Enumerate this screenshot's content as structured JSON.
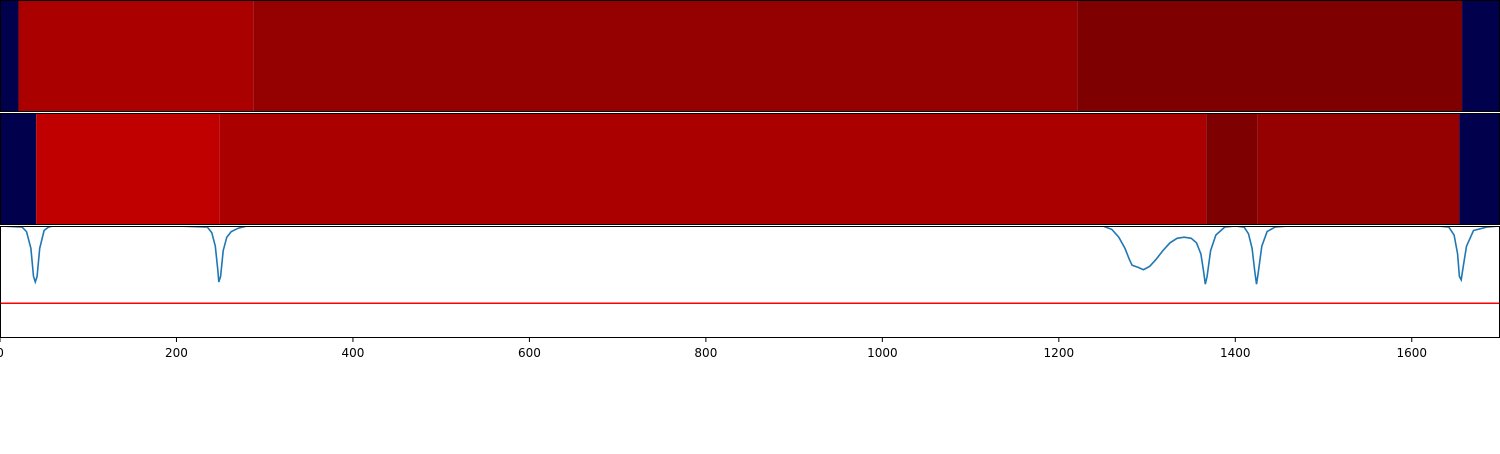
{
  "chart_data": {
    "type": "heatmap",
    "xlim": [
      0,
      1700
    ],
    "xticks": [
      "0",
      "200",
      "400",
      "600",
      "800",
      "1000",
      "1200",
      "1400",
      "1600"
    ],
    "xtick_values": [
      0,
      200,
      400,
      600,
      800,
      1000,
      1200,
      1400,
      1600
    ],
    "rows": [
      {
        "segments": [
          {
            "start": 0,
            "end": 21,
            "color": "#00004c"
          },
          {
            "start": 21,
            "end": 287,
            "color": "#aa0000"
          },
          {
            "start": 287,
            "end": 1221,
            "color": "#950000"
          },
          {
            "start": 1221,
            "end": 1657,
            "color": "#7f0000"
          },
          {
            "start": 1657,
            "end": 1700,
            "color": "#00004c"
          }
        ]
      },
      {
        "segments": [
          {
            "start": 0,
            "end": 41,
            "color": "#00004c"
          },
          {
            "start": 41,
            "end": 249,
            "color": "#c00000"
          },
          {
            "start": 249,
            "end": 1367,
            "color": "#aa0000"
          },
          {
            "start": 1367,
            "end": 1425,
            "color": "#7f0000"
          },
          {
            "start": 1425,
            "end": 1654,
            "color": "#950000"
          },
          {
            "start": 1654,
            "end": 1700,
            "color": "#00004c"
          }
        ]
      }
    ],
    "line_series": {
      "color": "#1f77b4",
      "ylim": [
        0,
        1
      ],
      "points": [
        [
          0,
          1.0
        ],
        [
          25,
          0.99
        ],
        [
          30,
          0.95
        ],
        [
          35,
          0.8
        ],
        [
          38,
          0.55
        ],
        [
          40,
          0.5
        ],
        [
          42,
          0.55
        ],
        [
          45,
          0.8
        ],
        [
          50,
          0.96
        ],
        [
          55,
          0.99
        ],
        [
          60,
          1.0
        ],
        [
          200,
          1.0
        ],
        [
          235,
          0.99
        ],
        [
          240,
          0.94
        ],
        [
          244,
          0.82
        ],
        [
          247,
          0.6
        ],
        [
          248,
          0.5
        ],
        [
          250,
          0.55
        ],
        [
          253,
          0.78
        ],
        [
          257,
          0.9
        ],
        [
          262,
          0.95
        ],
        [
          270,
          0.98
        ],
        [
          280,
          1.0
        ],
        [
          1250,
          1.0
        ],
        [
          1260,
          0.97
        ],
        [
          1268,
          0.9
        ],
        [
          1275,
          0.8
        ],
        [
          1280,
          0.7
        ],
        [
          1283,
          0.65
        ],
        [
          1290,
          0.63
        ],
        [
          1296,
          0.61
        ],
        [
          1303,
          0.64
        ],
        [
          1310,
          0.7
        ],
        [
          1318,
          0.78
        ],
        [
          1326,
          0.85
        ],
        [
          1334,
          0.89
        ],
        [
          1342,
          0.9
        ],
        [
          1350,
          0.89
        ],
        [
          1356,
          0.85
        ],
        [
          1361,
          0.75
        ],
        [
          1364,
          0.6
        ],
        [
          1366,
          0.48
        ],
        [
          1368,
          0.55
        ],
        [
          1372,
          0.78
        ],
        [
          1378,
          0.92
        ],
        [
          1388,
          0.99
        ],
        [
          1400,
          1.0
        ],
        [
          1410,
          0.99
        ],
        [
          1415,
          0.93
        ],
        [
          1419,
          0.8
        ],
        [
          1422,
          0.6
        ],
        [
          1424,
          0.48
        ],
        [
          1426,
          0.58
        ],
        [
          1430,
          0.82
        ],
        [
          1436,
          0.95
        ],
        [
          1445,
          0.99
        ],
        [
          1460,
          1.0
        ],
        [
          1630,
          1.0
        ],
        [
          1642,
          0.99
        ],
        [
          1648,
          0.92
        ],
        [
          1652,
          0.75
        ],
        [
          1654,
          0.55
        ],
        [
          1656,
          0.52
        ],
        [
          1658,
          0.62
        ],
        [
          1662,
          0.82
        ],
        [
          1670,
          0.96
        ],
        [
          1685,
          0.99
        ],
        [
          1700,
          1.0
        ]
      ]
    },
    "threshold": {
      "y": 0.31,
      "color": "#ff0000"
    }
  }
}
